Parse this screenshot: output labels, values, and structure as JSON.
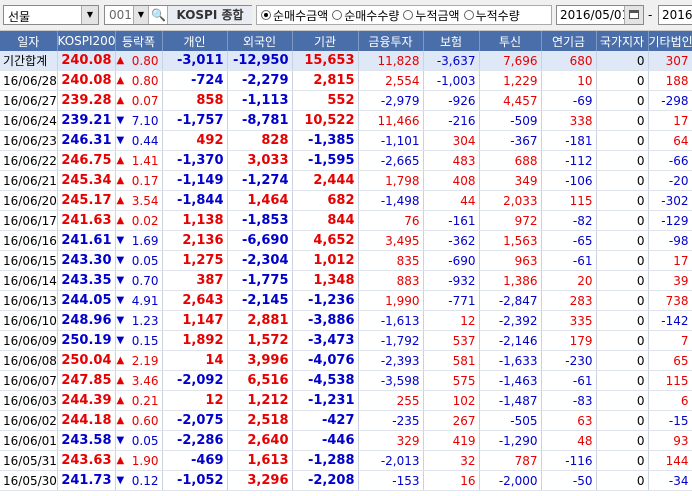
{
  "toolbar": {
    "category": "선물",
    "code": "001",
    "market_button": "KOSPI 종합",
    "radio_options": [
      "순매수금액",
      "순매수수량",
      "누적금액",
      "누적수량"
    ],
    "radio_selected": 0,
    "start_date": "2016/05/01",
    "date_dash": "-",
    "end_date": "2016/"
  },
  "table": {
    "headers": [
      "일자",
      "KOSPI200",
      "등락폭",
      "개인",
      "외국인",
      "기관",
      "금융투자",
      "보험",
      "투신",
      "연기금",
      "국가지자",
      "기타법인"
    ],
    "rows": [
      [
        "기간합계",
        "240.08",
        "up",
        "0.80",
        "-3,011",
        "-12,950",
        "15,653",
        "11,828",
        "-3,637",
        "7,696",
        "680",
        "0",
        "307"
      ],
      [
        "16/06/28",
        "240.08",
        "up",
        "0.80",
        "-724",
        "-2,279",
        "2,815",
        "2,554",
        "-1,003",
        "1,229",
        "10",
        "0",
        "188"
      ],
      [
        "16/06/27",
        "239.28",
        "up",
        "0.07",
        "858",
        "-1,113",
        "552",
        "-2,979",
        "-926",
        "4,457",
        "-69",
        "0",
        "-298"
      ],
      [
        "16/06/24",
        "239.21",
        "dn",
        "7.10",
        "-1,757",
        "-8,781",
        "10,522",
        "11,466",
        "-216",
        "-509",
        "338",
        "0",
        "17"
      ],
      [
        "16/06/23",
        "246.31",
        "dn",
        "0.44",
        "492",
        "828",
        "-1,385",
        "-1,101",
        "304",
        "-367",
        "-181",
        "0",
        "64"
      ],
      [
        "16/06/22",
        "246.75",
        "up",
        "1.41",
        "-1,370",
        "3,033",
        "-1,595",
        "-2,665",
        "483",
        "688",
        "-112",
        "0",
        "-66"
      ],
      [
        "16/06/21",
        "245.34",
        "up",
        "0.17",
        "-1,149",
        "-1,274",
        "2,444",
        "1,798",
        "408",
        "349",
        "-106",
        "0",
        "-20"
      ],
      [
        "16/06/20",
        "245.17",
        "up",
        "3.54",
        "-1,844",
        "1,464",
        "682",
        "-1,498",
        "44",
        "2,033",
        "115",
        "0",
        "-302"
      ],
      [
        "16/06/17",
        "241.63",
        "up",
        "0.02",
        "1,138",
        "-1,853",
        "844",
        "76",
        "-161",
        "972",
        "-82",
        "0",
        "-129"
      ],
      [
        "16/06/16",
        "241.61",
        "dn",
        "1.69",
        "2,136",
        "-6,690",
        "4,652",
        "3,495",
        "-362",
        "1,563",
        "-65",
        "0",
        "-98"
      ],
      [
        "16/06/15",
        "243.30",
        "dn",
        "0.05",
        "1,275",
        "-2,304",
        "1,012",
        "835",
        "-690",
        "963",
        "-61",
        "0",
        "17"
      ],
      [
        "16/06/14",
        "243.35",
        "dn",
        "0.70",
        "387",
        "-1,775",
        "1,348",
        "883",
        "-932",
        "1,386",
        "20",
        "0",
        "39"
      ],
      [
        "16/06/13",
        "244.05",
        "dn",
        "4.91",
        "2,643",
        "-2,145",
        "-1,236",
        "1,990",
        "-771",
        "-2,847",
        "283",
        "0",
        "738"
      ],
      [
        "16/06/10",
        "248.96",
        "dn",
        "1.23",
        "1,147",
        "2,881",
        "-3,886",
        "-1,613",
        "12",
        "-2,392",
        "335",
        "0",
        "-142"
      ],
      [
        "16/06/09",
        "250.19",
        "dn",
        "0.15",
        "1,892",
        "1,572",
        "-3,473",
        "-1,792",
        "537",
        "-2,146",
        "179",
        "0",
        "7"
      ],
      [
        "16/06/08",
        "250.04",
        "up",
        "2.19",
        "14",
        "3,996",
        "-4,076",
        "-2,393",
        "581",
        "-1,633",
        "-230",
        "0",
        "65"
      ],
      [
        "16/06/07",
        "247.85",
        "up",
        "3.46",
        "-2,092",
        "6,516",
        "-4,538",
        "-3,598",
        "575",
        "-1,463",
        "-61",
        "0",
        "115"
      ],
      [
        "16/06/03",
        "244.39",
        "up",
        "0.21",
        "12",
        "1,212",
        "-1,231",
        "255",
        "102",
        "-1,487",
        "-83",
        "0",
        "6"
      ],
      [
        "16/06/02",
        "244.18",
        "up",
        "0.60",
        "-2,075",
        "2,518",
        "-427",
        "-235",
        "267",
        "-505",
        "63",
        "0",
        "-15"
      ],
      [
        "16/06/01",
        "243.58",
        "dn",
        "0.05",
        "-2,286",
        "2,640",
        "-446",
        "329",
        "419",
        "-1,290",
        "48",
        "0",
        "93"
      ],
      [
        "16/05/31",
        "243.63",
        "up",
        "1.90",
        "-469",
        "1,613",
        "-1,288",
        "-2,013",
        "32",
        "787",
        "-116",
        "0",
        "144"
      ],
      [
        "16/05/30",
        "241.73",
        "dn",
        "0.12",
        "-1,052",
        "3,296",
        "-2,208",
        "-153",
        "16",
        "-2,000",
        "-50",
        "0",
        "-34"
      ]
    ]
  }
}
